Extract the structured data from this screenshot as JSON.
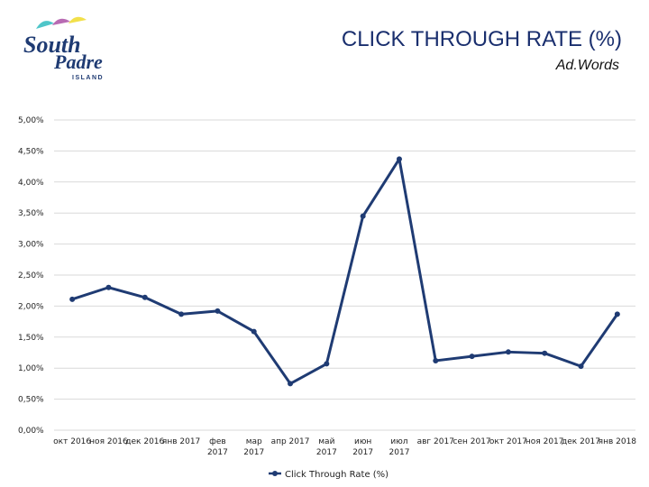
{
  "header": {
    "title": "CLICK THROUGH RATE (%)",
    "subtitle": "Ad.Words",
    "logo_lines": [
      "South",
      "Padre",
      "ISLAND"
    ]
  },
  "colors": {
    "series": "#1f3b73",
    "grid": "#d9d9d9",
    "title": "#1a2f6e",
    "umbrellas": [
      "#4fc6c9",
      "#b86bb3",
      "#f2e04a"
    ]
  },
  "chart_data": {
    "type": "line",
    "title": "CLICK THROUGH RATE (%)",
    "subtitle": "Ad.Words",
    "categories": [
      [
        "окт 2016"
      ],
      [
        "ноя 2016"
      ],
      [
        "дек 2016"
      ],
      [
        "янв 2017"
      ],
      [
        "фев",
        "2017"
      ],
      [
        "мар",
        "2017"
      ],
      [
        "апр 2017"
      ],
      [
        "май",
        "2017"
      ],
      [
        "июн",
        "2017"
      ],
      [
        "июл",
        "2017"
      ],
      [
        "авг 2017"
      ],
      [
        "сен 2017"
      ],
      [
        "окт 2017"
      ],
      [
        "ноя 2017"
      ],
      [
        "дек 2017"
      ],
      [
        "янв 2018"
      ]
    ],
    "series": [
      {
        "name": "Click Through Rate (%)",
        "values": [
          2.11,
          2.3,
          2.14,
          1.87,
          1.92,
          1.59,
          0.75,
          1.07,
          3.45,
          4.37,
          1.12,
          1.19,
          1.26,
          1.24,
          1.03,
          1.87
        ]
      }
    ],
    "yticks": [
      "0,00%",
      "0,50%",
      "1,00%",
      "1,50%",
      "2,00%",
      "2,50%",
      "3,00%",
      "3,50%",
      "4,00%",
      "4,50%",
      "5,00%"
    ],
    "ylim": [
      0,
      5
    ],
    "grid": true,
    "legend_position": "bottom"
  }
}
